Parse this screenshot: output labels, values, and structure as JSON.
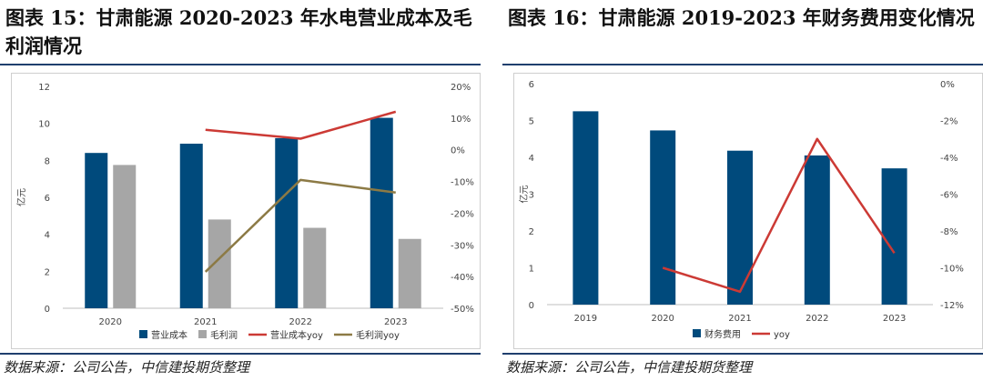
{
  "left_panel": {
    "title": "图表 15：甘肃能源 2020-2023 年水电营业成本及毛利润情况",
    "source": "数据来源：公司公告，中信建投期货整理"
  },
  "right_panel": {
    "title": "图表 16：甘肃能源 2019-2023 年财务费用变化情况",
    "source": "数据来源：公司公告，中信建投期货整理"
  },
  "colors": {
    "navy": "#004a7c",
    "gray": "#a6a6a6",
    "red": "#cc3a35",
    "olive": "#8c7a45",
    "rule": "#1f3f6e"
  },
  "chart_data": [
    {
      "type": "bar",
      "categories": [
        "2020",
        "2021",
        "2022",
        "2023"
      ],
      "ylabel": "亿元",
      "ylim": [
        0,
        12
      ],
      "yticks": [
        "0",
        "2",
        "4",
        "6",
        "8",
        "10",
        "12"
      ],
      "y2lim": [
        -50,
        20
      ],
      "y2ticks": [
        "-50%",
        "-40%",
        "-30%",
        "-20%",
        "-10%",
        "0%",
        "10%",
        "20%"
      ],
      "grid": false,
      "legend_position": "bottom",
      "series": [
        {
          "name": "营业成本",
          "kind": "bar",
          "axis": "left",
          "color": "#004a7c",
          "values": [
            8.4,
            8.9,
            9.2,
            10.3
          ]
        },
        {
          "name": "毛利润",
          "kind": "bar",
          "axis": "left",
          "color": "#a6a6a6",
          "values": [
            7.75,
            4.8,
            4.35,
            3.75
          ]
        },
        {
          "name": "营业成本yoy",
          "kind": "line",
          "axis": "right",
          "color": "#cc3a35",
          "values": [
            null,
            6.3,
            3.5,
            12.0
          ]
        },
        {
          "name": "毛利润yoy",
          "kind": "line",
          "axis": "right",
          "color": "#8c7a45",
          "values": [
            null,
            -38.5,
            -9.5,
            -13.5
          ]
        }
      ]
    },
    {
      "type": "bar",
      "categories": [
        "2019",
        "2020",
        "2021",
        "2022",
        "2023"
      ],
      "ylabel": "亿元",
      "ylim": [
        0,
        6
      ],
      "yticks": [
        "0",
        "1",
        "2",
        "3",
        "4",
        "5",
        "6"
      ],
      "y2lim": [
        -12,
        0
      ],
      "y2ticks": [
        "-12%",
        "-10%",
        "-8%",
        "-6%",
        "-4%",
        "-2%",
        "0%"
      ],
      "grid": false,
      "legend_position": "bottom",
      "series": [
        {
          "name": "财务费用",
          "kind": "bar",
          "axis": "left",
          "color": "#004a7c",
          "values": [
            5.25,
            4.73,
            4.18,
            4.05,
            3.7
          ]
        },
        {
          "name": "yoy",
          "kind": "line",
          "axis": "right",
          "color": "#cc3a35",
          "values": [
            null,
            -10.0,
            -11.3,
            -3.0,
            -9.2
          ]
        }
      ]
    }
  ]
}
